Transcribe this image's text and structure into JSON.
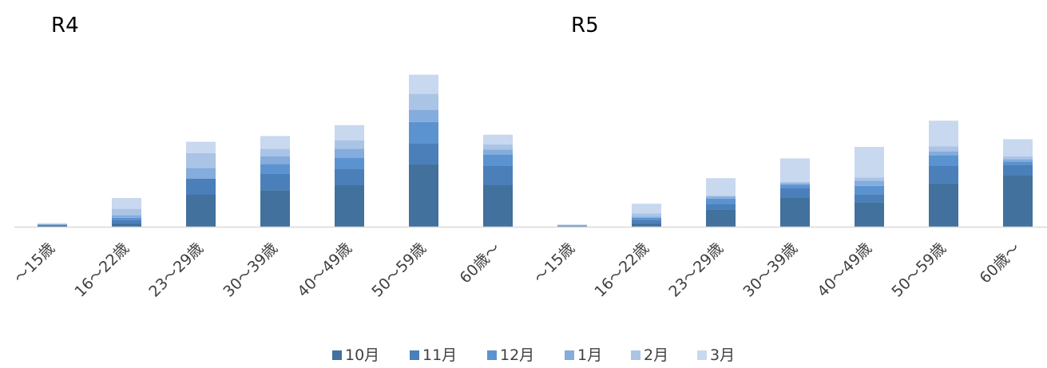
{
  "chart_data": [
    {
      "type": "bar",
      "stacked": true,
      "title": "R4",
      "categories": [
        "～15歳",
        "16～22歳",
        "23～29歳",
        "30～39歳",
        "40～49歳",
        "50～59歳",
        "60歳～"
      ],
      "series": [
        {
          "name": "10月",
          "color": "#41719c",
          "values": [
            2,
            6,
            50,
            57,
            65,
            98,
            65
          ]
        },
        {
          "name": "11月",
          "color": "#4a7fba",
          "values": [
            1,
            4,
            25,
            26,
            26,
            33,
            30
          ]
        },
        {
          "name": "12月",
          "color": "#5b93d0",
          "values": [
            0.5,
            4,
            0,
            15,
            17,
            33,
            18
          ]
        },
        {
          "name": "1月",
          "color": "#84acdc",
          "values": [
            0.5,
            4,
            17,
            12,
            14,
            19,
            8
          ]
        },
        {
          "name": "2月",
          "color": "#aac4e6",
          "values": [
            0.5,
            10,
            23,
            12,
            13,
            25,
            8
          ]
        },
        {
          "name": "3月",
          "color": "#c8d8ee",
          "values": [
            1,
            17,
            18,
            20,
            24,
            30,
            15
          ]
        }
      ],
      "xlabel": "",
      "ylabel": ""
    },
    {
      "type": "bar",
      "stacked": true,
      "title": "R5",
      "categories": [
        "～15歳",
        "16～22歳",
        "23～29歳",
        "30～39歳",
        "40～49歳",
        "50～59歳",
        "60歳～"
      ],
      "series": [
        {
          "name": "10月",
          "color": "#41719c",
          "values": [
            1,
            6,
            27,
            45,
            38,
            68,
            80
          ]
        },
        {
          "name": "11月",
          "color": "#4a7fba",
          "values": [
            0.5,
            5,
            8,
            15,
            13,
            27,
            17
          ]
        },
        {
          "name": "12月",
          "color": "#5b93d0",
          "values": [
            0.5,
            3,
            9,
            6,
            13,
            17,
            5
          ]
        },
        {
          "name": "1月",
          "color": "#84acdc",
          "values": [
            0.5,
            2,
            3,
            2,
            8,
            6,
            4
          ]
        },
        {
          "name": "2月",
          "color": "#aac4e6",
          "values": [
            0.5,
            5,
            2,
            2,
            5,
            8,
            4
          ]
        },
        {
          "name": "3月",
          "color": "#c8d8ee",
          "values": [
            0.5,
            15,
            27,
            37,
            48,
            40,
            27
          ]
        }
      ],
      "xlabel": "",
      "ylabel": ""
    }
  ]
}
